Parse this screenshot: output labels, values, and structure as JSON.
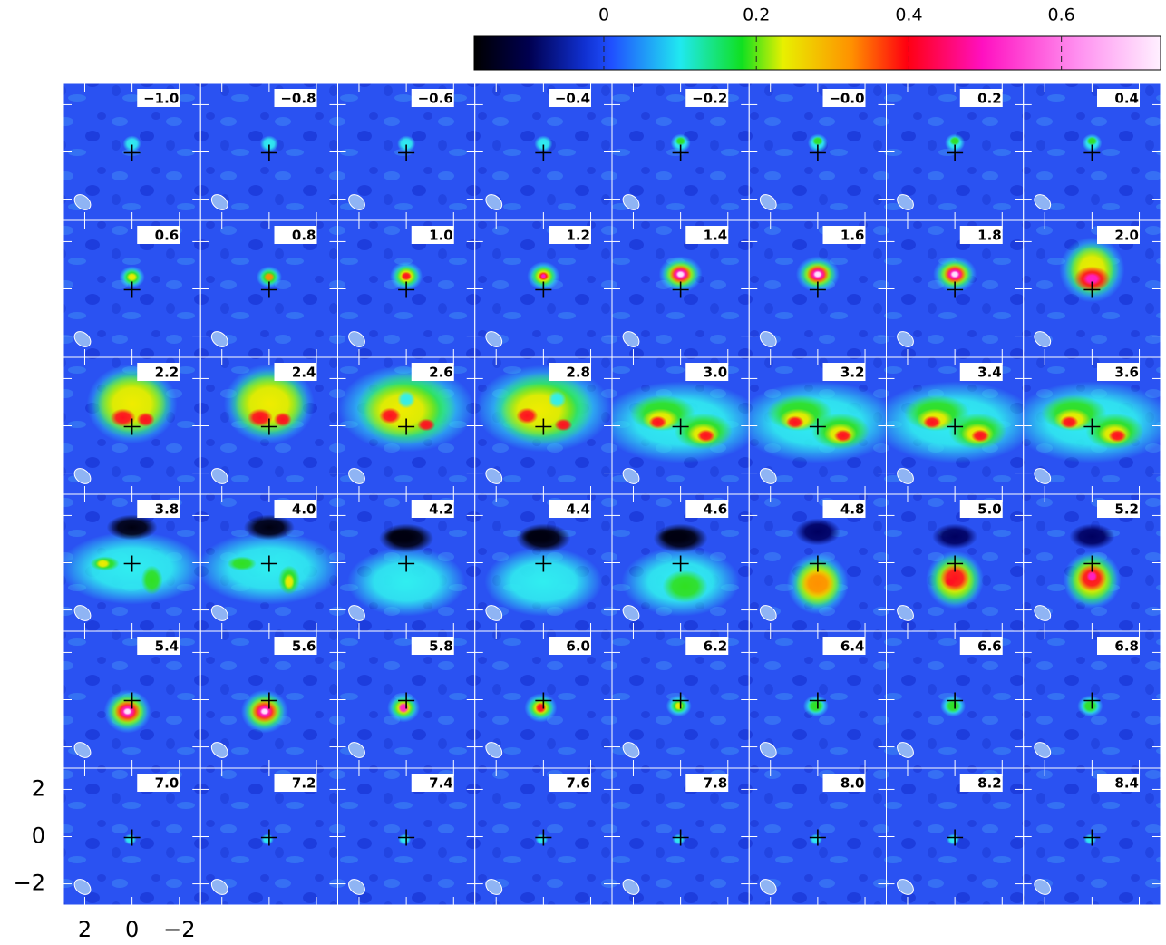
{
  "colorbar": {
    "lim": [
      -0.17,
      0.73
    ],
    "ticks": [
      0,
      0.2,
      0.4,
      0.6
    ]
  },
  "panels": {
    "labels": [
      "−1.0",
      "−0.8",
      "−0.6",
      "−0.4",
      "−0.2",
      "−0.0",
      "0.2",
      "0.4",
      "0.6",
      "0.8",
      "1.0",
      "1.2",
      "1.4",
      "1.6",
      "1.8",
      "2.0",
      "2.2",
      "2.4",
      "2.6",
      "2.8",
      "3.0",
      "3.2",
      "3.4",
      "3.6",
      "3.8",
      "4.0",
      "4.2",
      "4.4",
      "4.6",
      "4.8",
      "5.0",
      "5.2",
      "5.4",
      "5.6",
      "5.8",
      "6.0",
      "6.2",
      "6.4",
      "6.6",
      "6.8",
      "7.0",
      "7.2",
      "7.4",
      "7.6",
      "7.8",
      "8.0",
      "8.2",
      "8.4"
    ],
    "xlim": [
      2.9,
      -2.9
    ],
    "ylim": [
      -2.9,
      2.9
    ],
    "xticks": [
      2,
      0,
      {
        "value": -2,
        "label": "−2"
      }
    ],
    "yticks": [
      2,
      0,
      {
        "value": -2,
        "label": "−2"
      }
    ]
  }
}
